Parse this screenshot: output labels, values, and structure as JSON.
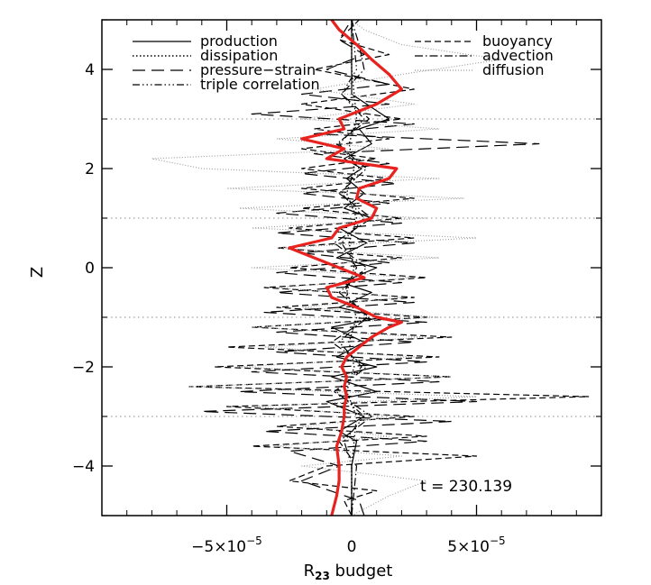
{
  "chart_data": {
    "type": "line",
    "title": "",
    "xlabel_main": "R",
    "xlabel_sub": "23",
    "xlabel_rest": " budget",
    "ylabel": "Z",
    "xlim": [
      -0.0001,
      0.0001
    ],
    "ylim": [
      -5,
      5
    ],
    "grid": "dotted horizontal lines at odd-integer z",
    "grid_levels": [
      -3,
      -1,
      1,
      3
    ],
    "legend_position": "top",
    "x_ticks": [
      {
        "value": -5e-05,
        "base": "−5×10",
        "exp": "−5"
      },
      {
        "value": 0,
        "base": "0",
        "exp": ""
      },
      {
        "value": 5e-05,
        "base": "5×10",
        "exp": "−5"
      }
    ],
    "y_ticks": [
      {
        "value": -4,
        "label": "−4"
      },
      {
        "value": -2,
        "label": "−2"
      },
      {
        "value": 0,
        "label": "0"
      },
      {
        "value": 2,
        "label": "2"
      },
      {
        "value": 4,
        "label": "4"
      }
    ],
    "annotation": "t = 230.139",
    "series": [
      {
        "name": "production",
        "style": "solid",
        "color": "#000000",
        "z": [
          -5,
          -4.5,
          -4,
          -3.5,
          -3.3,
          -3,
          -2.7,
          -2.5,
          -2.2,
          -2,
          -1.8,
          -1.5,
          -1.2,
          -1,
          -0.8,
          -0.5,
          -0.3,
          0,
          0.2,
          0.5,
          0.8,
          1,
          1.2,
          1.5,
          1.8,
          2,
          2.2,
          2.5,
          2.8,
          3,
          3.5,
          4,
          4.5,
          5
        ],
        "x": [
          0,
          0,
          0,
          2e-06,
          -5e-06,
          5e-06,
          -1e-05,
          1e-05,
          -8e-06,
          1e-05,
          -6e-06,
          5e-06,
          -8e-06,
          1.2e-05,
          -5e-06,
          8e-06,
          -4e-06,
          1e-05,
          -6e-06,
          6e-06,
          -5e-06,
          8e-06,
          -3e-06,
          5e-06,
          -2e-06,
          4e-06,
          -3e-06,
          8e-06,
          3e-06,
          1.5e-05,
          0,
          0,
          0,
          0
        ]
      },
      {
        "name": "dissipation",
        "style": "dotted",
        "color": "#000000",
        "z": [
          -5,
          -4,
          -3,
          -2.5,
          -2,
          -1.5,
          -1,
          -0.5,
          0,
          0.5,
          1,
          1.5,
          2,
          2.5,
          3,
          4,
          5
        ],
        "x": [
          0,
          0,
          2e-06,
          -2e-06,
          1e-06,
          -1e-06,
          2e-06,
          -2e-06,
          1e-06,
          -1e-06,
          2e-06,
          -2e-06,
          1e-06,
          -1e-06,
          2e-06,
          0,
          0
        ]
      },
      {
        "name": "pressure−strain",
        "style": "long-dash",
        "color": "#000000",
        "z": [
          -5,
          -4.7,
          -4.3,
          -4,
          -3.7,
          -3.5,
          -3.3,
          -3.1,
          -2.9,
          -2.7,
          -2.5,
          -2.3,
          -2.1,
          -1.9,
          -1.7,
          -1.5,
          -1.3,
          -1.1,
          -0.9,
          -0.7,
          -0.5,
          -0.3,
          -0.1,
          0.1,
          0.3,
          0.5,
          0.7,
          0.9,
          1.1,
          1.3,
          1.5,
          1.7,
          1.9,
          2.1,
          2.3,
          2.5,
          2.7,
          2.9,
          3.1,
          3.3,
          3.5,
          3.7,
          4,
          4.3,
          4.6,
          5
        ],
        "x": [
          5e-06,
          3e-06,
          -2e-05,
          -5e-06,
          -2.5e-05,
          3e-05,
          -3.5e-05,
          4e-05,
          -6e-05,
          5e-05,
          -4.5e-05,
          3.5e-05,
          -4e-05,
          3e-05,
          -3e-05,
          2.5e-05,
          -3e-05,
          3e-05,
          -3.5e-05,
          2.5e-05,
          -3e-05,
          2e-05,
          -3e-05,
          1.5e-05,
          -2e-05,
          2.5e-05,
          -3e-05,
          2e-05,
          -3e-05,
          1.5e-05,
          -2e-05,
          1.8e-05,
          -2e-05,
          1.5e-05,
          -1.5e-05,
          7.5e-05,
          -1.5e-05,
          2.5e-05,
          -4e-05,
          1.5e-05,
          -2e-05,
          1.5e-05,
          -1e-05,
          5e-06,
          -5e-06,
          0
        ]
      },
      {
        "name": "triple correlation",
        "style": "dash-dot-dot-dot",
        "color": "#000000",
        "z": [
          -5,
          -4,
          -3.5,
          -3,
          -2.5,
          -2,
          -1.5,
          -1,
          -0.5,
          0,
          0.5,
          1,
          1.5,
          2,
          2.5,
          3,
          3.5,
          4,
          5
        ],
        "x": [
          0,
          0,
          -3e-06,
          5e-06,
          -6e-06,
          4e-06,
          -5e-06,
          6e-06,
          -3e-06,
          2e-06,
          -4e-06,
          5e-06,
          -4e-06,
          3e-06,
          -5e-06,
          5e-06,
          -4e-06,
          2e-06,
          0
        ]
      },
      {
        "name": "buoyancy",
        "style": "dashed",
        "color": "#000000",
        "z": [
          -5,
          -4.7,
          -4.5,
          -4.3,
          -4,
          -3.8,
          -3.6,
          -3.4,
          -3.2,
          -3,
          -2.8,
          -2.6,
          -2.4,
          -2.2,
          -2,
          -1.8,
          -1.6,
          -1.4,
          -1.2,
          -1,
          -0.8,
          -0.6,
          -0.4,
          -0.2,
          0,
          0.2,
          0.4,
          0.6,
          0.8,
          1,
          1.2,
          1.4,
          1.6,
          1.8,
          2,
          2.2,
          2.4,
          2.6,
          2.8,
          3,
          3.3,
          3.6,
          4,
          4.3,
          4.6,
          5
        ],
        "x": [
          0,
          -3e-06,
          1e-05,
          -2.5e-05,
          -1e-05,
          5e-05,
          -4e-05,
          3e-05,
          -3e-05,
          2.5e-05,
          -5e-05,
          9.5e-05,
          -6.5e-05,
          4e-05,
          -5.5e-05,
          3.5e-05,
          -5e-05,
          4e-05,
          -4e-05,
          3e-05,
          -3e-05,
          2.5e-05,
          -3.5e-05,
          3e-05,
          -2.5e-05,
          2e-05,
          -3e-05,
          2.5e-05,
          -2.5e-05,
          2e-05,
          -2e-05,
          2.5e-05,
          -2e-05,
          1.5e-05,
          -2e-05,
          1e-05,
          -2e-05,
          1.5e-05,
          -1.5e-05,
          2e-05,
          -2e-05,
          2.5e-05,
          -1.5e-05,
          1.5e-05,
          -5e-06,
          3e-06
        ]
      },
      {
        "name": "advection",
        "style": "dash-dot",
        "color": "#000000",
        "z": [
          -5,
          -4,
          -3.5,
          -3,
          -2.5,
          -2,
          -1.5,
          -1,
          -0.5,
          0,
          0.5,
          1,
          1.5,
          2,
          2.5,
          3,
          3.5,
          4,
          4.5,
          5
        ],
        "x": [
          0,
          2e-06,
          -5e-06,
          8e-06,
          -7e-06,
          6e-06,
          -8e-06,
          7e-06,
          -5e-06,
          6e-06,
          -7e-06,
          8e-06,
          -5e-06,
          6e-06,
          -6e-06,
          7e-06,
          -4e-06,
          5e-06,
          3e-06,
          0
        ]
      },
      {
        "name": "diffusion",
        "style": "fine-dotted",
        "color": "#999999",
        "z": [
          -5,
          -4.6,
          -4.3,
          -4,
          -3.8,
          -3.6,
          -3.4,
          -3.2,
          -3,
          -2.8,
          -2.6,
          -2.4,
          -2.2,
          -2,
          -1.8,
          -1.6,
          -1.4,
          -1.2,
          -1,
          -0.8,
          -0.6,
          -0.4,
          -0.2,
          0,
          0.2,
          0.4,
          0.6,
          0.8,
          1,
          1.2,
          1.4,
          1.6,
          1.8,
          2,
          2.2,
          2.4,
          2.6,
          2.8,
          3,
          3.3,
          3.6,
          3.9,
          4.2,
          4.5,
          4.8,
          5
        ],
        "x": [
          0,
          1.5e-05,
          3e-05,
          -2e-05,
          2e-05,
          -3e-05,
          1.5e-05,
          -2e-05,
          2e-05,
          -4e-05,
          5e-05,
          -6.5e-05,
          4e-05,
          -4.5e-05,
          2.5e-05,
          -3.5e-05,
          3e-05,
          -4e-05,
          3.5e-05,
          -2e-05,
          2e-05,
          -3e-05,
          2.5e-05,
          -4e-05,
          3.5e-05,
          -3e-05,
          5e-05,
          -4e-05,
          3e-05,
          -4.5e-05,
          4.5e-05,
          -5e-05,
          3.5e-05,
          -6e-05,
          -8e-05,
          1.5e-05,
          -3e-05,
          3.5e-05,
          -2e-05,
          2.5e-05,
          -1.5e-05,
          2e-05,
          6e-05,
          2e-05,
          5e-06,
          0
        ]
      },
      {
        "name": "",
        "style": "bold",
        "color": "#e8231f",
        "z": [
          -5,
          -4.6,
          -4.3,
          -4,
          -3.6,
          -3.3,
          -3,
          -2.8,
          -2.6,
          -2.4,
          -2.2,
          -2,
          -1.8,
          -1.6,
          -1.4,
          -1.2,
          -1.1,
          -1,
          -0.8,
          -0.6,
          -0.4,
          -0.2,
          0,
          0.2,
          0.4,
          0.6,
          0.8,
          1,
          1.2,
          1.4,
          1.6,
          1.8,
          2,
          2.2,
          2.4,
          2.6,
          2.8,
          3,
          3.3,
          3.6,
          3.9,
          4.2,
          4.5,
          4.8,
          5
        ],
        "x": [
          -8e-06,
          -6e-06,
          -5e-06,
          -5e-06,
          -6e-06,
          -4e-06,
          -3e-06,
          -3e-06,
          -2e-06,
          -3e-06,
          -2e-06,
          -4e-06,
          -2e-06,
          3e-06,
          8e-06,
          1.5e-05,
          2e-05,
          1e-05,
          2e-06,
          -8e-06,
          -1e-05,
          5e-06,
          -5e-06,
          -1.5e-05,
          -2.5e-05,
          -8e-06,
          -5e-06,
          8e-06,
          1e-05,
          2e-06,
          3e-06,
          1.5e-05,
          1.8e-05,
          -1e-05,
          -3e-06,
          -2e-05,
          -3e-06,
          -5e-06,
          1e-05,
          2e-05,
          1.5e-05,
          8e-06,
          2e-06,
          -5e-06,
          -8e-06
        ]
      }
    ]
  }
}
